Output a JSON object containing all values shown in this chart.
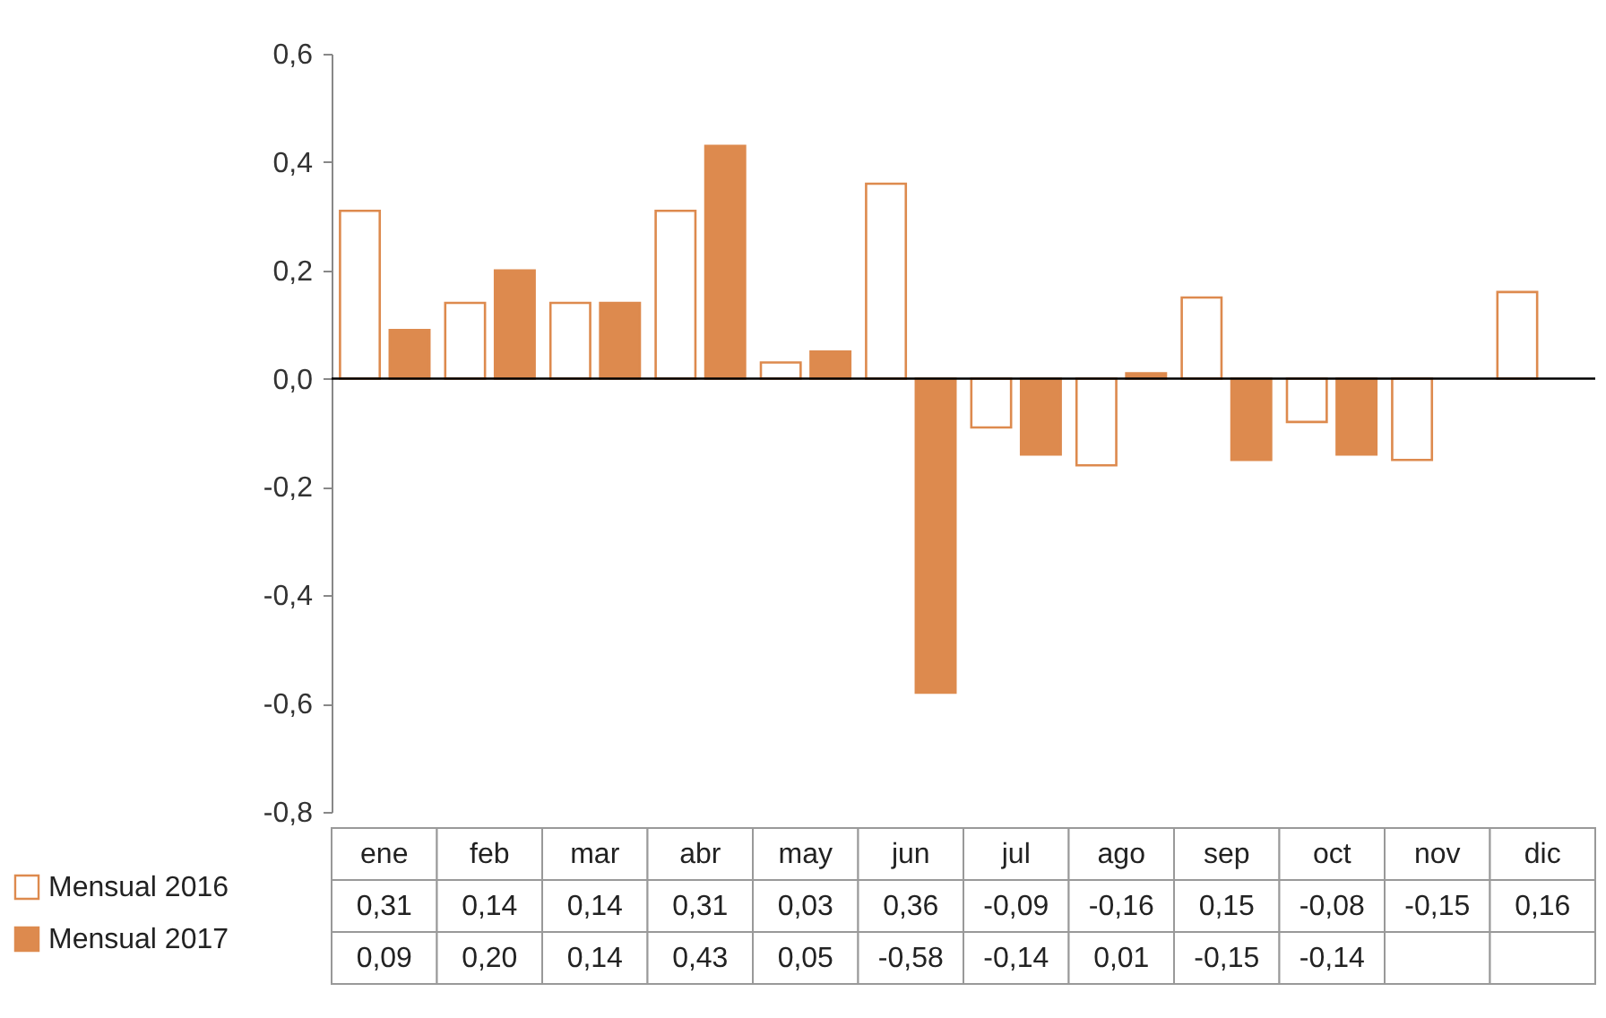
{
  "chart_data": {
    "type": "bar",
    "categories": [
      "ene",
      "feb",
      "mar",
      "abr",
      "may",
      "jun",
      "jul",
      "ago",
      "sep",
      "oct",
      "nov",
      "dic"
    ],
    "series": [
      {
        "name": "Mensual 2016",
        "color": "#dd8a4e",
        "values": [
          0.31,
          0.14,
          0.14,
          0.31,
          0.03,
          0.36,
          -0.09,
          -0.16,
          0.15,
          -0.08,
          -0.15,
          0.16
        ],
        "value_labels": [
          "0,31",
          "0,14",
          "0,14",
          "0,31",
          "0,03",
          "0,36",
          "-0,09",
          "-0,16",
          "0,15",
          "-0,08",
          "-0,15",
          "0,16"
        ]
      },
      {
        "name": "Mensual 2017",
        "color": "#dd8a4e",
        "values": [
          0.09,
          0.2,
          0.14,
          0.43,
          0.05,
          -0.58,
          -0.14,
          0.01,
          -0.15,
          -0.14,
          null,
          null
        ],
        "value_labels": [
          "0,09",
          "0,20",
          "0,14",
          "0,43",
          "0,05",
          "-0,58",
          "-0,14",
          "0,01",
          "-0,15",
          "-0,14",
          null,
          null
        ]
      }
    ],
    "ylim": [
      -0.8,
      0.6
    ],
    "yticks": [
      {
        "value": -0.8,
        "label": "-0,8"
      },
      {
        "value": -0.6,
        "label": "-0,6"
      },
      {
        "value": -0.4,
        "label": "-0,4"
      },
      {
        "value": -0.2,
        "label": "-0,2"
      },
      {
        "value": 0,
        "label": "0,0"
      },
      {
        "value": 0.2,
        "label": "0,2"
      },
      {
        "value": 0.4,
        "label": "0,4"
      },
      {
        "value": 0.6,
        "label": "0,6"
      }
    ],
    "ref_lines": [
      {
        "axis": "y",
        "value": 0,
        "color": "#000000"
      }
    ],
    "grid": false,
    "legend": "bottom"
  }
}
